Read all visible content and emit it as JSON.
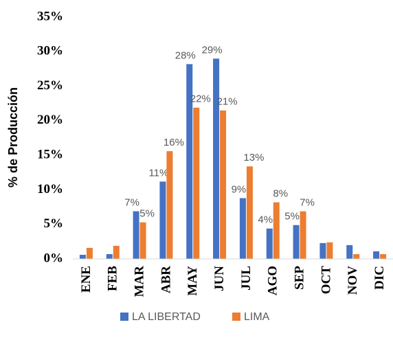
{
  "chart_data": {
    "type": "bar",
    "y_label": "% de Producción",
    "categories": [
      "ENE",
      "FEB",
      "MAR",
      "ABR",
      "MAY",
      "JUN",
      "JUL",
      "AGO",
      "SEP",
      "OCT",
      "NOV",
      "DIC"
    ],
    "series": [
      {
        "name": "LA LIBERTAD",
        "color": "#4472c4",
        "values": [
          0.6,
          0.7,
          6.9,
          11.2,
          28.2,
          29.0,
          8.8,
          4.4,
          4.9,
          2.3,
          2.0,
          1.1
        ],
        "value_labels": [
          null,
          null,
          "7%",
          "11%",
          "28%",
          "29%",
          "9%",
          "4%",
          "5%",
          null,
          null,
          null
        ]
      },
      {
        "name": "LIMA",
        "color": "#ed7d31",
        "values": [
          1.6,
          1.9,
          5.3,
          15.6,
          21.9,
          21.5,
          13.4,
          8.2,
          6.9,
          2.4,
          0.7,
          0.7
        ],
        "value_labels": [
          null,
          null,
          "5%",
          "16%",
          "22%",
          "21%",
          "13%",
          "8%",
          "7%",
          null,
          null,
          null
        ]
      }
    ],
    "ylim": [
      0,
      35
    ],
    "yticks": [
      {
        "value": 0,
        "label": "0%"
      },
      {
        "value": 5,
        "label": "5%"
      },
      {
        "value": 10,
        "label": "10%"
      },
      {
        "value": 15,
        "label": "15%"
      },
      {
        "value": 20,
        "label": "20%"
      },
      {
        "value": 25,
        "label": "25%"
      },
      {
        "value": 30,
        "label": "30%"
      },
      {
        "value": 35,
        "label": "35%"
      }
    ],
    "grid": false,
    "legend": "bottom"
  }
}
